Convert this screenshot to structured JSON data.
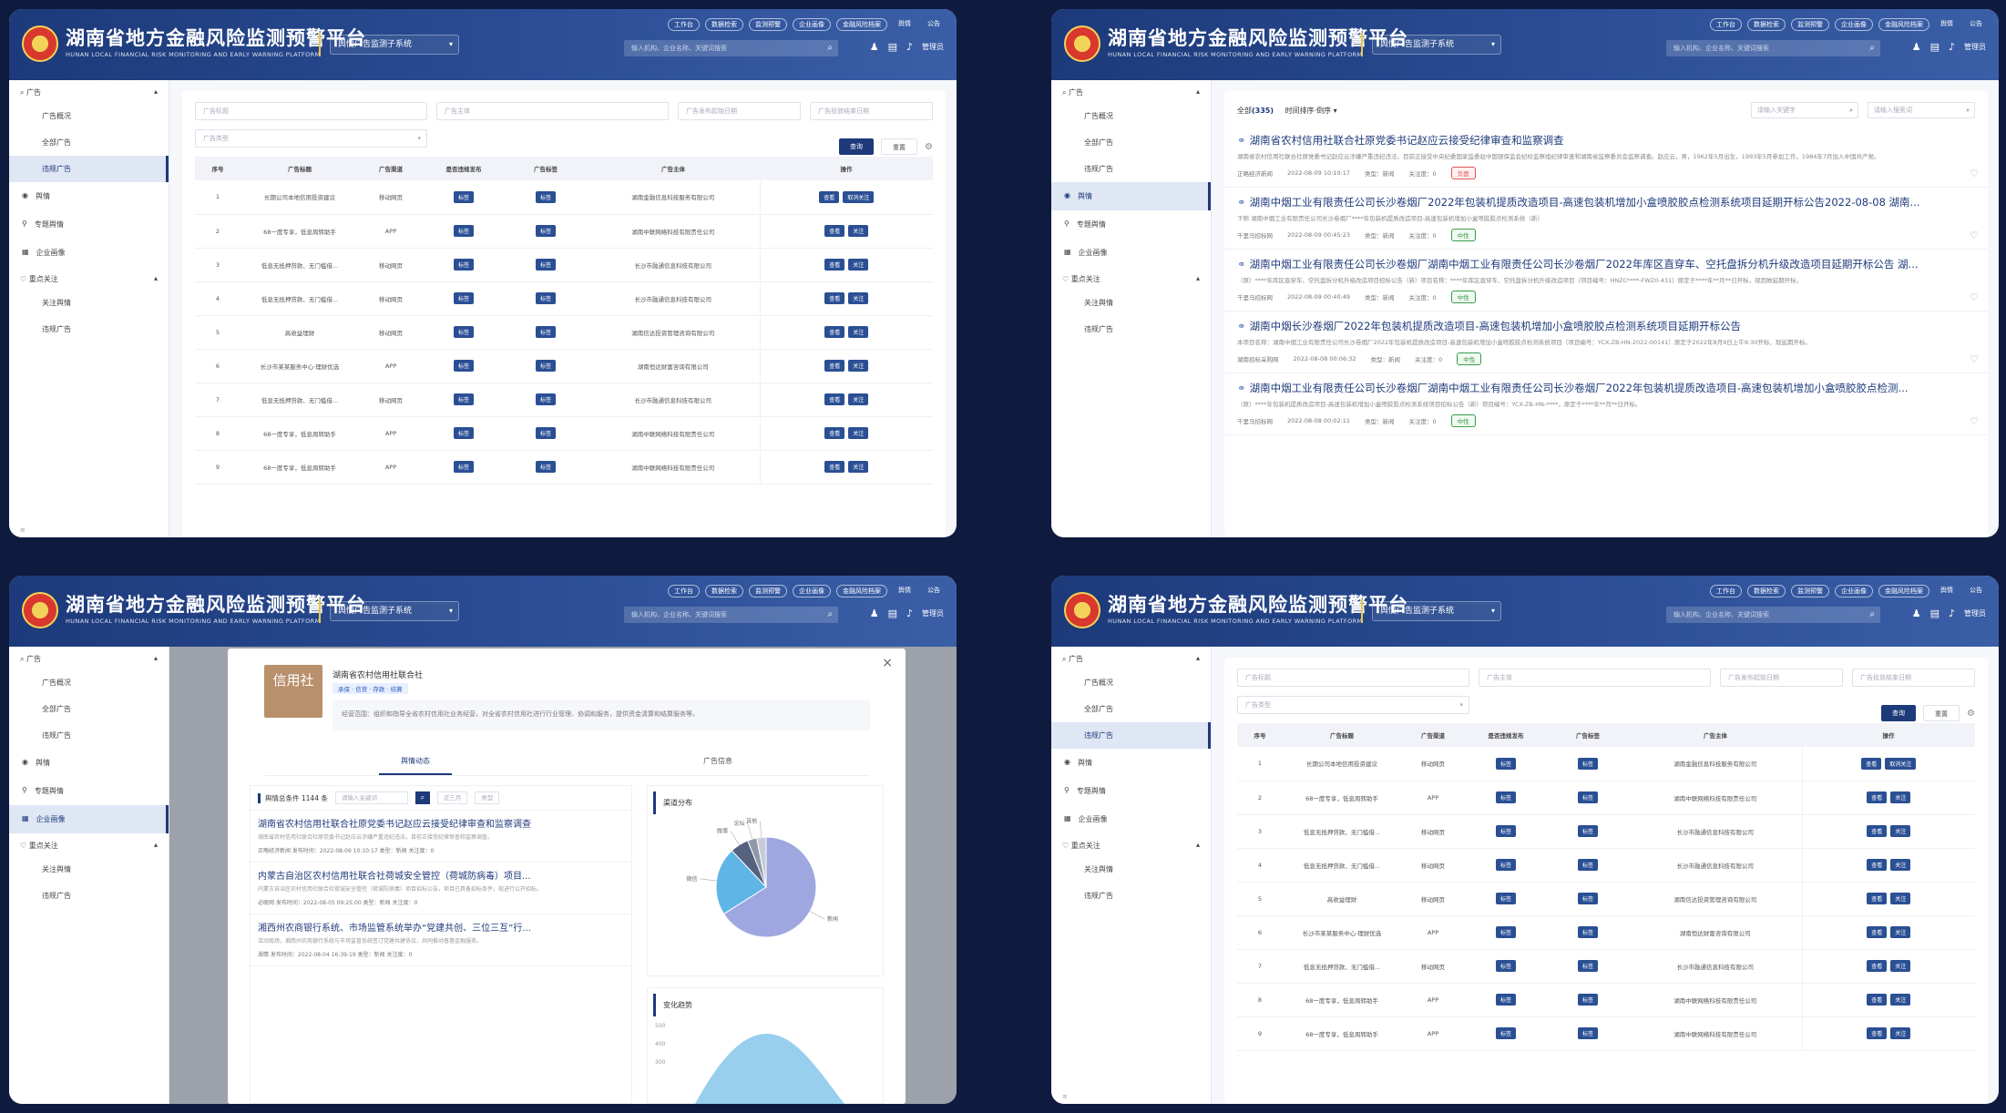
{
  "header": {
    "title": "湖南省地方金融风险监测预警平台",
    "subtitle": "HUNAN LOCAL FINANCIAL RISK MONITORING AND EARLY WARNING PLATFORM",
    "subsystem": "舆情广告监测子系统",
    "quick_links": [
      "工作台",
      "数据检索",
      "监测预警",
      "企业画像",
      "金融风险档案",
      "舆情",
      "公告"
    ],
    "search_placeholder": "输入机构、企业名称、关键词搜索",
    "admin": "管理员",
    "colors": {
      "header": "#1d3a7a",
      "accent": "#e8c74a",
      "page_bg": "#0f1a3f"
    }
  },
  "sidebar": {
    "search_group": "广告",
    "ad_items": [
      "广告概况",
      "全部广告",
      "违规广告"
    ],
    "top_items": [
      "舆情",
      "专题舆情",
      "企业画像"
    ],
    "focus_group": "重点关注",
    "focus_items": [
      "关注舆情",
      "违规广告"
    ]
  },
  "filters": {
    "ad_title": "广告标题",
    "ad_subject": "广告主体",
    "date_start": "广告发布起始日期",
    "date_end": "广告投放结束日期",
    "ad_type": "广告类型",
    "query": "查询",
    "reset": "重置"
  },
  "table": {
    "headers": [
      "序号",
      "广告标题",
      "广告渠道",
      "是否违规发布",
      "广告标签",
      "广告主体",
      "操作"
    ],
    "rows": [
      {
        "n": "1",
        "title": "长期公司本地信用投资建议",
        "ch": "移动网页",
        "s": "标签",
        "tag": "标签",
        "org": "湖南金融信息科技服务有限公司",
        "ops": [
          "查看",
          "取消关注"
        ]
      },
      {
        "n": "2",
        "title": "68一度专享，低息周转助手",
        "ch": "APP",
        "s": "标签",
        "tag": "标签",
        "org": "湖南中联网络科技有限责任公司",
        "ops": [
          "查看",
          "关注"
        ]
      },
      {
        "n": "3",
        "title": "低息无抵押贷款、无门槛借...",
        "ch": "移动网页",
        "s": "标签",
        "tag": "标签",
        "org": "长沙市融通信息科技有限公司",
        "ops": [
          "查看",
          "关注"
        ]
      },
      {
        "n": "4",
        "title": "低息无抵押贷款、无门槛借...",
        "ch": "移动网页",
        "s": "标签",
        "tag": "标签",
        "org": "长沙市融通信息科技有限公司",
        "ops": [
          "查看",
          "关注"
        ]
      },
      {
        "n": "5",
        "title": "高收益理财",
        "ch": "移动网页",
        "s": "标签",
        "tag": "标签",
        "org": "湖南信达投资管理咨询有限公司",
        "ops": [
          "查看",
          "关注"
        ]
      },
      {
        "n": "6",
        "title": "长沙市某某服务中心·理财优选",
        "ch": "APP",
        "s": "标签",
        "tag": "标签",
        "org": "湖南恒达财富咨询有限公司",
        "ops": [
          "查看",
          "关注"
        ]
      },
      {
        "n": "7",
        "title": "低息无抵押贷款、无门槛借...",
        "ch": "移动网页",
        "s": "标签",
        "tag": "标签",
        "org": "长沙市融通信息科技有限公司",
        "ops": [
          "查看",
          "关注"
        ]
      },
      {
        "n": "8",
        "title": "68一度专享，低息周转助手",
        "ch": "APP",
        "s": "标签",
        "tag": "标签",
        "org": "湖南中联网络科技有限责任公司",
        "ops": [
          "查看",
          "关注"
        ]
      },
      {
        "n": "9",
        "title": "68一度专享，低息周转助手",
        "ch": "APP",
        "s": "标签",
        "tag": "标签",
        "org": "湖南中联网络科技有限责任公司",
        "ops": [
          "查看",
          "关注"
        ]
      }
    ]
  },
  "feed_list": {
    "all_label": "全部",
    "all_count": "(335)",
    "sort_label": "时间排序·倒序",
    "search_placeholder": "请输入关键字",
    "search2_placeholder": "请输入搜索词",
    "articles": [
      {
        "title": "湖南省农村信用社联合社原党委书记赵应云接受纪律审查和监察调查",
        "body": "湖南省农村信用社联合社原党委书记赵应云涉嫌严重违纪违法，目前正接受中央纪委国家监委驻中国银保监会纪检监察组纪律审查和湖南省监察委员会监察调查。赵应云，男，1962年5月出生，1993年5月参加工作，1984年7月加入中国共产党。",
        "source": "正略经济新闻",
        "date": "2022-08-09 10:10:17",
        "tags": "类型：新闻",
        "attn": "关注度：0",
        "pill": "负面",
        "pill_type": "neg"
      },
      {
        "title": "湖南中烟工业有限责任公司长沙卷烟厂2022年包装机提质改造项目-高速包装机增加小盒喷胶胶点检测系统项目延期开标公告2022-08-08 湖南...",
        "body": "下称 湖南中烟工业有限责任公司长沙卷烟厂****年包装机提质改造项目-高速包装机增加小盒喷胶胶点检测系统（新）",
        "source": "千里马招标网",
        "date": "2022-08-09 00:45:23",
        "tags": "类型：新闻",
        "attn": "关注度：0",
        "pill": "中性",
        "pill_type": "mid"
      },
      {
        "title": "湖南中烟工业有限责任公司长沙卷烟厂湖南中烟工业有限责任公司长沙卷烟厂2022年库区直穿车、空托盘拆分机升级改造项目延期开标公告 湖...",
        "body": "（原）****年库区直穿车、空托盘拆分机升级改造项目招标公告（新）项目名称：****年库区直穿车、空托盘拆分机升级改造项目（项目编号：HNZC****-FWZ0-431）原定于****年**月**日开标，现因故延期开标。",
        "source": "千里马招标网",
        "date": "2022-08-09 00:40:49",
        "tags": "类型：新闻",
        "attn": "关注度：0",
        "pill": "中性",
        "pill_type": "mid"
      },
      {
        "title": "湖南中烟长沙卷烟厂2022年包装机提质改造项目-高速包装机增加小盒喷胶胶点检测系统项目延期开标公告",
        "body": "本项目名称：湖南中烟工业有限责任公司长沙卷烟厂2022年包装机提质改造项目-高速包装机增加小盒喷胶胶点检测系统项目（项目编号：YCX-ZB-HN-2022-00141）原定于2022年8月9日上午9:30开标，现延期开标。",
        "source": "湖南招标采购网",
        "date": "2022-08-08 00:06:32",
        "tags": "类型：新闻",
        "attn": "关注度：0",
        "pill": "中性",
        "pill_type": "mid"
      },
      {
        "title": "湖南中烟工业有限责任公司长沙卷烟厂湖南中烟工业有限责任公司长沙卷烟厂2022年包装机提质改造项目-高速包装机增加小盒喷胶胶点检测...",
        "body": "（原）****年包装机提质改造项目-高速包装机增加小盒喷胶胶点检测系统项目招标公告（新）项目编号：YCX-ZB-HN-****，原定于****年**月**日开标。",
        "source": "千里马招标网",
        "date": "2022-08-08 00:02:11",
        "tags": "类型：新闻",
        "attn": "关注度：0",
        "pill": "中性",
        "pill_type": "mid"
      }
    ]
  },
  "modal": {
    "logo_text": "信用社",
    "org_name": "湖南省农村信用社联合社",
    "tags": "承保 · 信贷 · 存款 · 结算",
    "desc": "经营范围：组织和指导全省农村信用社业务经营，对全省农村信用社进行行业管理、协调和服务，提供资金清算和结算服务等。",
    "tabs": [
      "舆情动态",
      "广告信息"
    ],
    "feed_count": "舆情总条件 1144 条",
    "feed_search": "请输入关键词",
    "feed_sel1": "近三月",
    "feed_sel2": "类型",
    "items": [
      {
        "title": "湖南省农村信用社联合社原党委书记赵应云接受纪律审查和监察调查",
        "body": "湖南省农村信用社联合社原党委书记赵应云涉嫌严重违纪违法，目前正接受纪律审查和监察调查。",
        "meta": "正略经济新闻  发布时间：2022-08-09 10:10:17  类型：新闻  关注度：0"
      },
      {
        "title": "内蒙古自治区农村信用社联合社荷城安全管控（荷城防病毒）项目...",
        "body": "内蒙古自治区农村信用社联合社荷城安全管控（荷城防病毒）项目招标公告，项目已具备招标条件，现进行公开招标。",
        "meta": "必联网  发布时间：2022-08-05 09:25:00  类型：新闻  关注度：0"
      },
      {
        "title": "湘西州农商银行系统、市场监管系统举办“党建共创、三位三互”行...",
        "body": "活动现场，湘西州农商银行系统与市场监管系统签订党建共建协议，共同推动普惠金融服务。",
        "meta": "湘情  发布时间：2022-08-04 16:39:19  类型：新闻  关注度：0"
      }
    ],
    "pie_title": "渠道分布",
    "pie_chart": {
      "type": "pie",
      "slices": [
        {
          "label": "新闻",
          "value": 66,
          "color": "#9ea7e0"
        },
        {
          "label": "微信",
          "value": 22,
          "color": "#5fb5e6"
        },
        {
          "label": "微博",
          "value": 6,
          "color": "#54617f"
        },
        {
          "label": "论坛",
          "value": 3,
          "color": "#9099a9"
        },
        {
          "label": "其他",
          "value": 3,
          "color": "#c7ccd6"
        }
      ]
    },
    "trend_title": "变化趋势",
    "trend_axis": [
      "500",
      "400",
      "300"
    ]
  },
  "misc": {
    "scroll_marker": "≡"
  }
}
